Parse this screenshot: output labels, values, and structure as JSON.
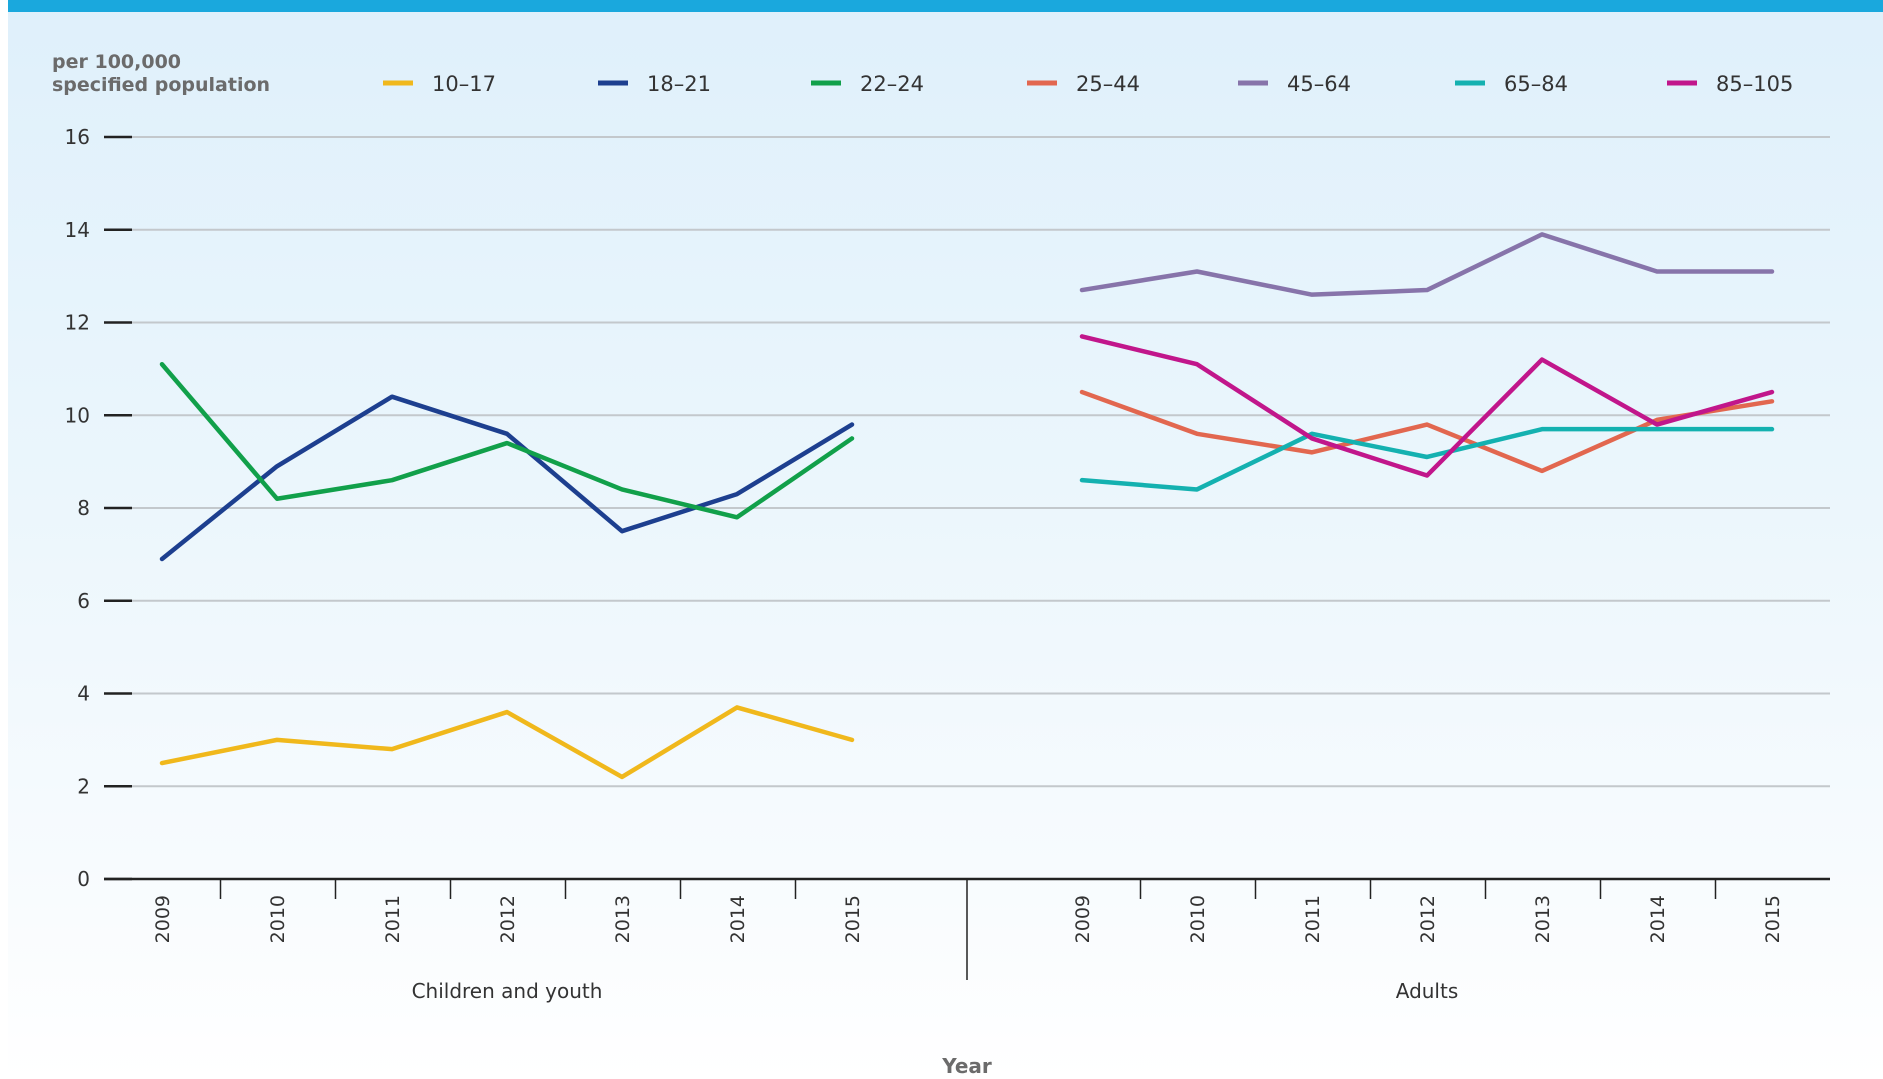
{
  "chart_data": {
    "type": "line",
    "ylabel": "per 100,000\nspecified population",
    "xlabel": "Year",
    "ylim": [
      0,
      16
    ],
    "yticks": [
      0,
      2,
      4,
      6,
      8,
      10,
      12,
      14,
      16
    ],
    "grid": true,
    "legend_position": "top",
    "years": [
      "2009",
      "2010",
      "2011",
      "2012",
      "2013",
      "2014",
      "2015"
    ],
    "groups": [
      {
        "label": "Children and youth",
        "series": [
          {
            "name": "10–17",
            "color": "#f0b81c",
            "values": [
              2.5,
              3.0,
              2.8,
              3.6,
              2.2,
              3.7,
              3.0
            ]
          },
          {
            "name": "18–21",
            "color": "#1d3f8f",
            "values": [
              6.9,
              8.9,
              10.4,
              9.6,
              7.5,
              8.3,
              9.8
            ]
          },
          {
            "name": "22–24",
            "color": "#11a04a",
            "values": [
              11.1,
              8.2,
              8.6,
              9.4,
              8.4,
              7.8,
              9.5
            ]
          }
        ]
      },
      {
        "label": "Adults",
        "series": [
          {
            "name": "25–44",
            "color": "#e2674f",
            "values": [
              10.5,
              9.6,
              9.2,
              9.8,
              8.8,
              9.9,
              10.3
            ]
          },
          {
            "name": "45–64",
            "color": "#8774aa",
            "values": [
              12.7,
              13.1,
              12.6,
              12.7,
              13.9,
              13.1,
              13.1
            ]
          },
          {
            "name": "65–84",
            "color": "#14b1b0",
            "values": [
              8.6,
              8.4,
              9.6,
              9.1,
              9.7,
              9.7,
              9.7
            ]
          },
          {
            "name": "85–105",
            "color": "#c1168b",
            "values": [
              11.7,
              11.1,
              9.5,
              8.7,
              11.2,
              9.8,
              10.5
            ]
          }
        ]
      }
    ],
    "legend": [
      {
        "name": "10–17",
        "color": "#f0b81c"
      },
      {
        "name": "18–21",
        "color": "#1d3f8f"
      },
      {
        "name": "22–24",
        "color": "#11a04a"
      },
      {
        "name": "25–44",
        "color": "#e2674f"
      },
      {
        "name": "45–64",
        "color": "#8774aa"
      },
      {
        "name": "65–84",
        "color": "#14b1b0"
      },
      {
        "name": "85–105",
        "color": "#c1168b"
      }
    ]
  }
}
